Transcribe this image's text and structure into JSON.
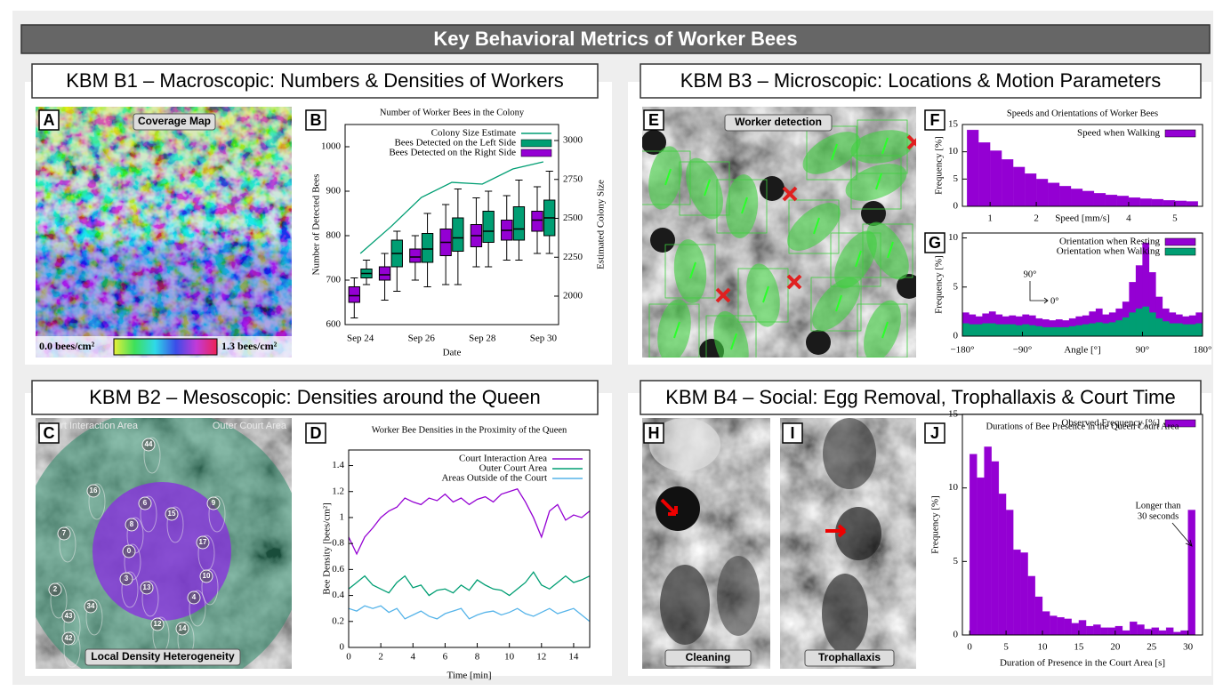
{
  "title": "Key Behavioral Metrics of Worker Bees",
  "sections": [
    {
      "header": "KBM B1 – Macroscopic: Numbers & Densities of Workers"
    },
    {
      "header": "KBM B3 – Microscopic: Locations & Motion Parameters"
    },
    {
      "header": "KBM B2 – Mesoscopic: Densities around the Queen"
    },
    {
      "header": "KBM B4 – Social: Egg Removal, Trophallaxis & Court Time"
    }
  ],
  "images": {
    "A": {
      "letter": "A",
      "label": "Coverage Map",
      "scale_min": "0.0 bees/cm²",
      "scale_max": "1.3 bees/cm²"
    },
    "C": {
      "letter": "C",
      "inner_area": "Court Interaction Area",
      "outer_area": "Outer Court Area",
      "label": "Local Density Heterogeneity",
      "bee_ids": [
        "44",
        "16",
        "6",
        "15",
        "9",
        "8",
        "7",
        "17",
        "0",
        "3",
        "10",
        "2",
        "13",
        "4",
        "34",
        "43",
        "12",
        "14",
        "42"
      ]
    },
    "E": {
      "letter": "E",
      "label": "Worker detection"
    },
    "H": {
      "letter": "H",
      "label": "Cleaning"
    },
    "I": {
      "letter": "I",
      "label": "Trophallaxis"
    }
  },
  "chart_data": [
    {
      "type": "box",
      "panel": "B",
      "title": "Number of Worker Bees in the Colony",
      "categories": [
        "Sep 24",
        null,
        "Sep 26",
        null,
        "Sep 28",
        null,
        "Sep 30"
      ],
      "xlabel": "Date",
      "ylabel": "Number of Detected Bees",
      "y2label": "Estimated Colony Size",
      "ylim": [
        600,
        1050
      ],
      "yticks": [
        600,
        700,
        800,
        900,
        1000
      ],
      "y2lim": [
        1817,
        3103
      ],
      "y2ticks": [
        2000,
        2250,
        2500,
        2750,
        3000
      ],
      "legend": "upper right",
      "series": [
        {
          "name": "Colony Size Estimate",
          "color": "#009e73",
          "axis": "y2",
          "values": [
            2274,
            2446,
            2634,
            2731,
            2720,
            2817,
            2863
          ]
        },
        {
          "name": "Bees Detected on the Left Side",
          "color": "#009e73",
          "min": [
            690,
            675,
            685,
            690,
            730,
            745,
            760
          ],
          "q1": [
            705,
            730,
            740,
            765,
            785,
            790,
            800
          ],
          "median": [
            715,
            760,
            770,
            795,
            810,
            815,
            840
          ],
          "q3": [
            725,
            790,
            805,
            840,
            855,
            865,
            880
          ],
          "max": [
            745,
            810,
            850,
            905,
            900,
            925,
            945
          ]
        },
        {
          "name": "Bees Detected on the Right Side",
          "color": "#9400d3",
          "min": [
            615,
            655,
            700,
            690,
            730,
            745,
            760
          ],
          "q1": [
            650,
            700,
            740,
            755,
            775,
            790,
            810
          ],
          "median": [
            665,
            712,
            752,
            785,
            800,
            812,
            835
          ],
          "q3": [
            685,
            730,
            770,
            815,
            825,
            835,
            855
          ],
          "max": [
            705,
            760,
            800,
            870,
            885,
            890,
            910
          ]
        }
      ]
    },
    {
      "type": "histogram",
      "panel": "F",
      "title": "Speeds and Orientations of Worker Bees",
      "xlabel": "Speed [mm/s]",
      "ylabel": "Frequency [%]",
      "bins": [
        0.5,
        0.75,
        1,
        1.25,
        1.5,
        1.75,
        2,
        2.25,
        2.5,
        2.75,
        3,
        3.25,
        3.5,
        3.75,
        4,
        4.25,
        4.5,
        4.75,
        5,
        5.25,
        5.5
      ],
      "xlim": [
        0.4,
        5.6
      ],
      "xticks": [
        1,
        2,
        4,
        5
      ],
      "ylim": [
        0,
        15
      ],
      "yticks": [
        0,
        5,
        10,
        15
      ],
      "legend": "upper right",
      "series": [
        {
          "name": "Speed when Walking",
          "color": "#9400d3",
          "values": [
            14,
            11.7,
            10.2,
            8.6,
            7.2,
            6.0,
            5.0,
            4.3,
            3.7,
            3.2,
            2.8,
            2.4,
            2.1,
            1.9,
            1.6,
            1.4,
            1.3,
            1.1,
            1.0,
            0.9
          ]
        }
      ]
    },
    {
      "type": "histogram",
      "panel": "G",
      "xlabel": "Angle [°]",
      "ylabel": "Frequency [%]",
      "bins": [
        -180,
        -170,
        -160,
        -150,
        -140,
        -130,
        -120,
        -110,
        -100,
        -90,
        -80,
        -70,
        -60,
        -50,
        -40,
        -30,
        -20,
        -10,
        0,
        10,
        20,
        30,
        40,
        50,
        60,
        70,
        80,
        90,
        100,
        110,
        120,
        130,
        140,
        150,
        160,
        170,
        180
      ],
      "xlim": [
        -180,
        180
      ],
      "xticks": [
        {
          "value": -180,
          "label": "−180°"
        },
        {
          "value": -90,
          "label": "−90°"
        },
        {
          "value": 90,
          "label": "90°"
        },
        {
          "value": 180,
          "label": "180°"
        }
      ],
      "ylim": [
        0,
        10.5
      ],
      "yticks": [
        0,
        5,
        10
      ],
      "annotations": [
        "90°",
        "0°"
      ],
      "legend": "upper right",
      "series": [
        {
          "name": "Orientation when Resting",
          "color": "#9400d3",
          "values": [
            2.4,
            2.2,
            2.0,
            2.3,
            2.5,
            2.2,
            2.0,
            2.1,
            2.0,
            2.2,
            2.1,
            1.8,
            1.7,
            1.6,
            1.7,
            1.6,
            1.8,
            2.0,
            2.1,
            2.5,
            2.8,
            2.2,
            2.4,
            2.8,
            3.5,
            5.5,
            7.2,
            9.5,
            6.5,
            4.0,
            2.8,
            2.4,
            2.2,
            2.0,
            2.1,
            2.4
          ]
        },
        {
          "name": "Orientation when Walking",
          "color": "#009e73",
          "values": [
            1.3,
            1.2,
            1.2,
            1.3,
            1.3,
            1.2,
            1.2,
            1.2,
            1.1,
            1.2,
            1.1,
            1.0,
            0.9,
            0.9,
            0.9,
            0.9,
            1.0,
            1.1,
            1.2,
            1.3,
            1.4,
            1.3,
            1.4,
            1.6,
            1.9,
            2.4,
            2.8,
            3.0,
            2.4,
            1.8,
            1.5,
            1.3,
            1.3,
            1.2,
            1.2,
            1.3
          ]
        }
      ]
    },
    {
      "type": "line",
      "panel": "D",
      "title": "Worker Bee Densities in the Proximity of the Queen",
      "xlabel": "Time [min]",
      "ylabel": "Bee Density [bees/cm²]",
      "x": [
        0,
        0.5,
        1,
        1.5,
        2,
        2.5,
        3,
        3.5,
        4,
        4.5,
        5,
        5.5,
        6,
        6.5,
        7,
        7.5,
        8,
        8.5,
        9,
        9.5,
        10,
        10.5,
        11,
        11.5,
        12,
        12.5,
        13,
        13.5,
        14,
        14.5,
        15
      ],
      "xlim": [
        0,
        15
      ],
      "xticks": [
        0,
        2,
        4,
        6,
        8,
        10,
        12,
        14
      ],
      "ylim": [
        0,
        1.52
      ],
      "yticks": [
        0,
        0.2,
        0.4,
        0.6,
        0.8,
        1,
        1.2,
        1.4
      ],
      "legend": "upper right",
      "series": [
        {
          "name": "Court Interaction Area",
          "color": "#9400d3",
          "values": [
            0.85,
            0.72,
            0.85,
            0.92,
            1.0,
            1.05,
            1.08,
            1.15,
            1.12,
            1.1,
            1.15,
            1.13,
            1.18,
            1.12,
            1.15,
            1.1,
            1.14,
            1.16,
            1.12,
            1.18,
            1.2,
            1.22,
            1.12,
            1.0,
            0.85,
            1.05,
            1.1,
            0.98,
            1.02,
            1.0,
            1.05
          ]
        },
        {
          "name": "Outer Court Area",
          "color": "#009e73",
          "values": [
            0.45,
            0.5,
            0.55,
            0.48,
            0.45,
            0.42,
            0.5,
            0.55,
            0.46,
            0.48,
            0.4,
            0.44,
            0.45,
            0.42,
            0.48,
            0.44,
            0.52,
            0.48,
            0.45,
            0.44,
            0.4,
            0.45,
            0.5,
            0.58,
            0.48,
            0.45,
            0.5,
            0.55,
            0.5,
            0.52,
            0.55
          ]
        },
        {
          "name": "Areas Outside of the Court",
          "color": "#56b4e9",
          "values": [
            0.3,
            0.28,
            0.32,
            0.3,
            0.32,
            0.27,
            0.3,
            0.22,
            0.25,
            0.28,
            0.24,
            0.22,
            0.26,
            0.28,
            0.3,
            0.22,
            0.25,
            0.27,
            0.28,
            0.25,
            0.27,
            0.3,
            0.26,
            0.24,
            0.27,
            0.3,
            0.26,
            0.28,
            0.3,
            0.25,
            0.2
          ]
        }
      ]
    },
    {
      "type": "histogram",
      "panel": "J",
      "title": "Durations of Bee Presence in the Queen Court Area",
      "xlabel": "Duration of Presence in the Court Area [s]",
      "ylabel": "Frequency [%]",
      "bins": [
        0,
        1,
        2,
        3,
        4,
        5,
        6,
        7,
        8,
        9,
        10,
        11,
        12,
        13,
        14,
        15,
        16,
        17,
        18,
        19,
        20,
        21,
        22,
        23,
        24,
        25,
        26,
        27,
        28,
        29,
        30,
        31
      ],
      "xlim": [
        -1,
        32
      ],
      "xticks": [
        0,
        5,
        10,
        15,
        20,
        25,
        30
      ],
      "ylim": [
        0,
        15
      ],
      "yticks": [
        0,
        5,
        10,
        15
      ],
      "annotations": [
        "Longer than",
        "30 seconds"
      ],
      "legend": "upper right",
      "series": [
        {
          "name": "Observed Frequency [%]",
          "color": "#9400d3",
          "values": [
            12.3,
            10.7,
            12.8,
            11.8,
            9.6,
            8.5,
            5.8,
            5.6,
            4.0,
            2.6,
            1.6,
            1.3,
            1.2,
            1.1,
            0.8,
            1.0,
            0.6,
            0.7,
            0.5,
            0.5,
            0.6,
            0.3,
            0.9,
            0.7,
            0.4,
            0.5,
            0.3,
            0.5,
            0.2,
            0.3,
            8.5
          ]
        }
      ]
    }
  ]
}
